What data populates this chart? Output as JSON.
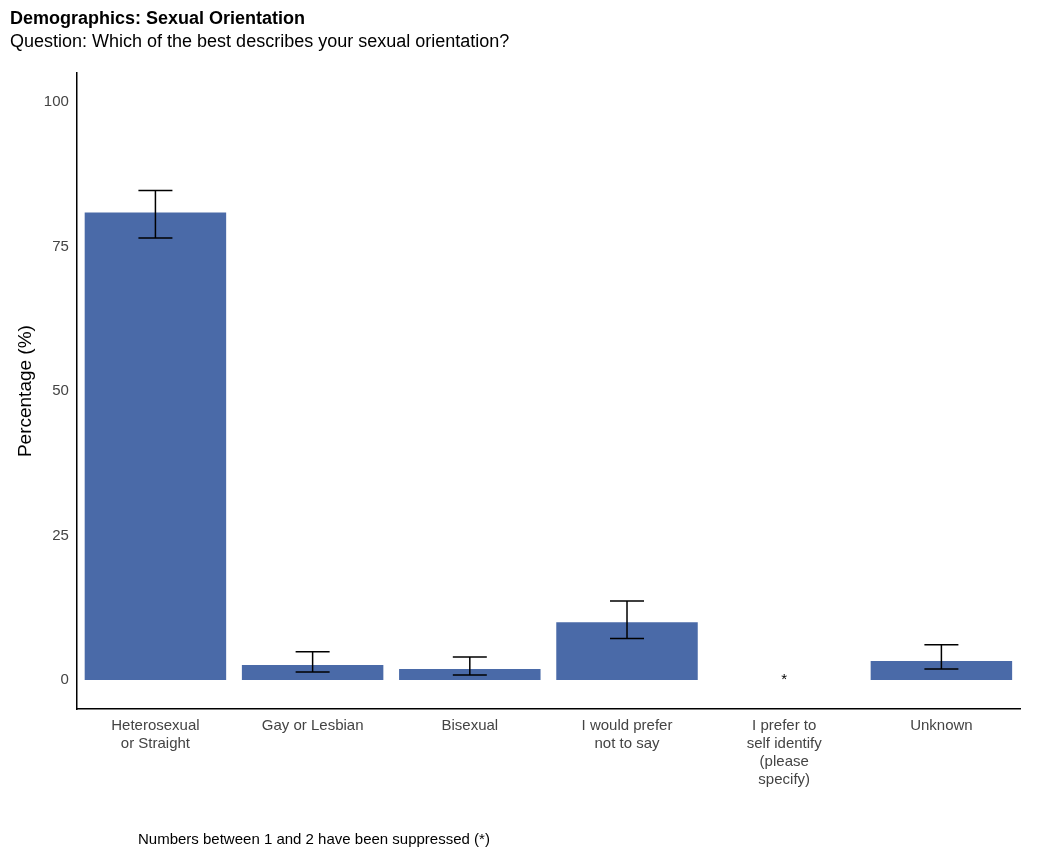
{
  "chart_data": {
    "type": "bar",
    "title": "Demographics: Sexual Orientation",
    "subtitle": "Question: Which of the best describes your sexual orientation?",
    "ylabel": "Percentage (%)",
    "categories": [
      "Heterosexual or Straight",
      "Gay or Lesbian",
      "Bisexual",
      "I would prefer not to say",
      "I prefer to self identify (please specify)",
      "Unknown"
    ],
    "values": [
      80.9,
      2.6,
      1.9,
      10.0,
      null,
      3.3
    ],
    "color": "#4a6aa8",
    "value_labels": [
      null,
      null,
      null,
      null,
      "*",
      null
    ],
    "errors": [
      [
        76.5,
        84.7
      ],
      [
        1.4,
        4.9
      ],
      [
        0.9,
        4.0
      ],
      [
        7.2,
        13.7
      ],
      null,
      [
        1.9,
        6.1
      ]
    ],
    "ylim": [
      -5,
      105
    ],
    "yticks": [
      0,
      25,
      50,
      75,
      100
    ],
    "grid": false,
    "legend": false,
    "annotations": [
      "Numbers between 1 and 2 have been suppressed (*)"
    ]
  }
}
